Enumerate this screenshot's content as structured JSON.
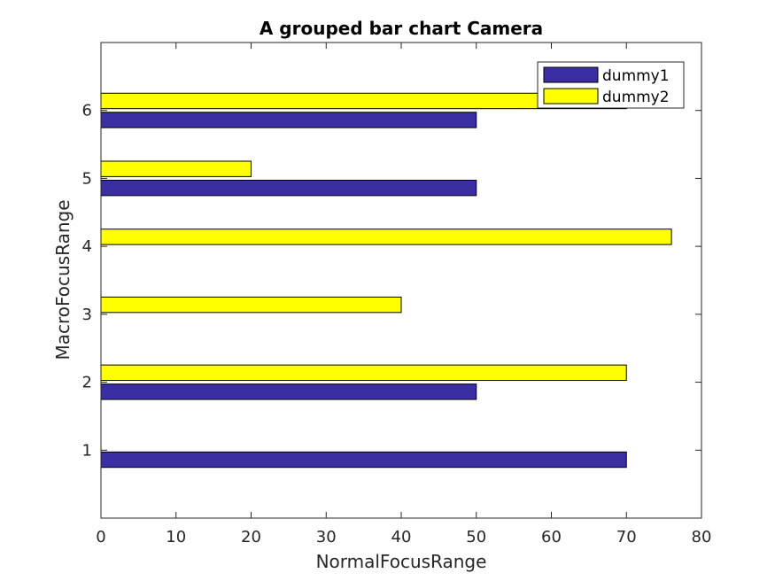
{
  "chart_data": {
    "type": "bar",
    "orientation": "horizontal",
    "title": "A grouped bar chart Camera",
    "xlabel": "NormalFocusRange",
    "ylabel": "MacroFocusRange",
    "categories": [
      "1",
      "2",
      "3",
      "4",
      "5",
      "6"
    ],
    "category_values": [
      1,
      2,
      3,
      4,
      5,
      6
    ],
    "xlim": [
      0,
      80
    ],
    "ylim": [
      0,
      7
    ],
    "xticks": [
      "0",
      "10",
      "20",
      "30",
      "40",
      "50",
      "60",
      "70",
      "80"
    ],
    "xtick_values": [
      0,
      10,
      20,
      30,
      40,
      50,
      60,
      70,
      80
    ],
    "grid": false,
    "legend_position": "top-right",
    "series": [
      {
        "name": "dummy1",
        "color": "#3b2ea5",
        "values": [
          70,
          50,
          0,
          0,
          50,
          50
        ]
      },
      {
        "name": "dummy2",
        "color": "#ffff00",
        "values": [
          0,
          70,
          40,
          76,
          20,
          70
        ]
      }
    ]
  }
}
